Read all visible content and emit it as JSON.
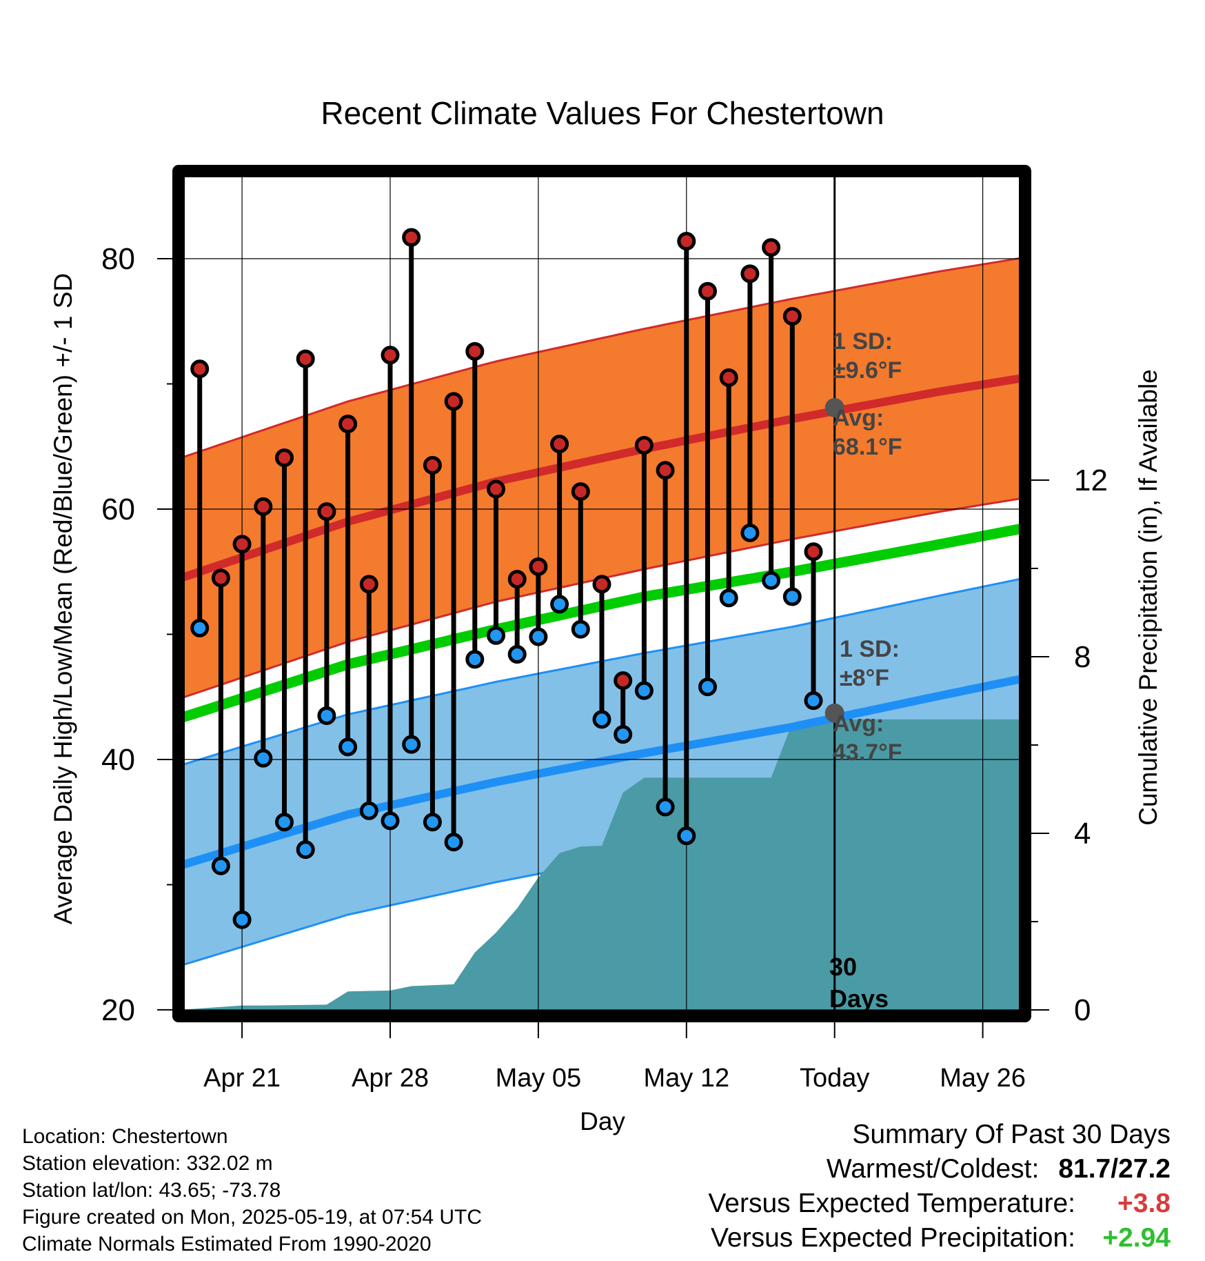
{
  "title": "Recent Climate Values For Chestertown",
  "colors": {
    "high_band": "#f47a2e",
    "high_line": "#d12a2a",
    "high_marker": "#c62828",
    "low_band": "#82c0e8",
    "low_line": "#1e8ff5",
    "low_marker": "#2196f3",
    "mean_line": "#00cc00",
    "precip": "#4a9ba5",
    "avg_marker": "#555555"
  },
  "chart_data": {
    "type": "line",
    "xlabel": "Day",
    "ylabel": "Average Daily High/Low/Mean (Red/Blue/Green) +/- 1 SD",
    "y2label": "Cumulative Precipitation (in), If Available",
    "xlim": [
      "2025-04-18",
      "2025-05-28"
    ],
    "ylim": [
      19.5,
      87
    ],
    "y2lim": [
      -0.14,
      19
    ],
    "x_ticks": [
      {
        "date": "2025-04-21",
        "label": "Apr 21"
      },
      {
        "date": "2025-04-28",
        "label": "Apr 28"
      },
      {
        "date": "2025-05-05",
        "label": "May 05"
      },
      {
        "date": "2025-05-12",
        "label": "May 12"
      },
      {
        "date": "2025-05-19",
        "label": "Today"
      },
      {
        "date": "2025-05-26",
        "label": "May 26"
      }
    ],
    "y_ticks": [
      20,
      40,
      60,
      80
    ],
    "y_minor_ticks": [
      30,
      50,
      70
    ],
    "y2_ticks": [
      0,
      4,
      8,
      12
    ],
    "y2_minor_ticks": [
      2,
      6,
      10
    ],
    "grid": true,
    "today": "2025-05-19",
    "period_label": "30\nDays",
    "normals": {
      "dates": [
        "2025-04-19",
        "2025-04-26",
        "2025-05-03",
        "2025-05-10",
        "2025-05-17",
        "2025-05-24",
        "2025-05-28"
      ],
      "high_mean": [
        55.0,
        59.0,
        62.2,
        64.8,
        67.2,
        69.4,
        70.5
      ],
      "high_sd": [
        9.6,
        9.6,
        9.6,
        9.6,
        9.6,
        9.6,
        9.6
      ],
      "low_mean": [
        32.0,
        35.6,
        38.2,
        40.5,
        42.6,
        45.1,
        46.5
      ],
      "low_sd": [
        8.0,
        8.0,
        8.0,
        8.0,
        8.0,
        8.0,
        8.0
      ],
      "mean": [
        43.8,
        47.6,
        50.4,
        53.0,
        55.0,
        57.2,
        58.5
      ]
    },
    "high_annotation": {
      "sd_label": "1 SD:",
      "sd_value": "±9.6°F",
      "avg_label": "Avg:",
      "avg_value": "68.1°F",
      "avg": 68.1
    },
    "low_annotation": {
      "sd_label": "1 SD:",
      "sd_value": "±8°F",
      "avg_label": "Avg:",
      "avg_value": "43.7°F",
      "avg": 43.7
    },
    "daily": [
      {
        "date": "2025-04-19",
        "high": 71.2,
        "low": 50.5
      },
      {
        "date": "2025-04-20",
        "high": 54.5,
        "low": 31.5
      },
      {
        "date": "2025-04-21",
        "high": 57.2,
        "low": 27.2
      },
      {
        "date": "2025-04-22",
        "high": 60.2,
        "low": 40.1
      },
      {
        "date": "2025-04-23",
        "high": 64.1,
        "low": 35.0
      },
      {
        "date": "2025-04-24",
        "high": 72.0,
        "low": 32.8
      },
      {
        "date": "2025-04-25",
        "high": 59.8,
        "low": 43.5
      },
      {
        "date": "2025-04-26",
        "high": 66.8,
        "low": 41.0
      },
      {
        "date": "2025-04-27",
        "high": 54.0,
        "low": 35.9
      },
      {
        "date": "2025-04-28",
        "high": 72.3,
        "low": 35.1
      },
      {
        "date": "2025-04-29",
        "high": 81.7,
        "low": 41.2
      },
      {
        "date": "2025-04-30",
        "high": 63.5,
        "low": 35.0
      },
      {
        "date": "2025-05-01",
        "high": 68.6,
        "low": 33.4
      },
      {
        "date": "2025-05-02",
        "high": 72.6,
        "low": 48.0
      },
      {
        "date": "2025-05-03",
        "high": 61.6,
        "low": 49.9
      },
      {
        "date": "2025-05-04",
        "high": 54.4,
        "low": 48.4
      },
      {
        "date": "2025-05-05",
        "high": 55.4,
        "low": 49.8
      },
      {
        "date": "2025-05-06",
        "high": 65.2,
        "low": 52.4
      },
      {
        "date": "2025-05-07",
        "high": 61.4,
        "low": 50.4
      },
      {
        "date": "2025-05-08",
        "high": 54.0,
        "low": 43.2
      },
      {
        "date": "2025-05-09",
        "high": 46.3,
        "low": 42.0
      },
      {
        "date": "2025-05-10",
        "high": 65.1,
        "low": 45.5
      },
      {
        "date": "2025-05-11",
        "high": 63.1,
        "low": 36.2
      },
      {
        "date": "2025-05-12",
        "high": 81.4,
        "low": 33.9
      },
      {
        "date": "2025-05-13",
        "high": 77.4,
        "low": 45.8
      },
      {
        "date": "2025-05-14",
        "high": 70.5,
        "low": 52.9
      },
      {
        "date": "2025-05-15",
        "high": 78.8,
        "low": 58.1
      },
      {
        "date": "2025-05-16",
        "high": 80.9,
        "low": 54.3
      },
      {
        "date": "2025-05-17",
        "high": 75.4,
        "low": 53.0
      },
      {
        "date": "2025-05-18",
        "high": 56.6,
        "low": 44.7
      }
    ],
    "precip_cumulative": [
      {
        "date": "2025-04-18",
        "value": 0.0
      },
      {
        "date": "2025-04-21",
        "value": 0.1
      },
      {
        "date": "2025-04-22",
        "value": 0.1
      },
      {
        "date": "2025-04-25",
        "value": 0.12
      },
      {
        "date": "2025-04-26",
        "value": 0.42
      },
      {
        "date": "2025-04-27",
        "value": 0.43
      },
      {
        "date": "2025-04-28",
        "value": 0.44
      },
      {
        "date": "2025-04-29",
        "value": 0.54
      },
      {
        "date": "2025-05-01",
        "value": 0.58
      },
      {
        "date": "2025-05-02",
        "value": 1.3
      },
      {
        "date": "2025-05-03",
        "value": 1.75
      },
      {
        "date": "2025-05-04",
        "value": 2.3
      },
      {
        "date": "2025-05-05",
        "value": 3.0
      },
      {
        "date": "2025-05-06",
        "value": 3.55
      },
      {
        "date": "2025-05-07",
        "value": 3.7
      },
      {
        "date": "2025-05-08",
        "value": 3.72
      },
      {
        "date": "2025-05-09",
        "value": 4.92
      },
      {
        "date": "2025-05-10",
        "value": 5.26
      },
      {
        "date": "2025-05-11",
        "value": 5.26
      },
      {
        "date": "2025-05-15",
        "value": 5.26
      },
      {
        "date": "2025-05-16",
        "value": 5.26
      },
      {
        "date": "2025-05-17",
        "value": 6.5
      },
      {
        "date": "2025-05-18",
        "value": 6.58
      },
      {
        "date": "2025-05-28",
        "value": 6.58
      }
    ]
  },
  "footer": {
    "location": "Location: Chestertown",
    "elevation": "Station elevation: 332.02 m",
    "latlon": "Station lat/lon: 43.65; -73.78",
    "created": "Figure created on Mon, 2025-05-19, at 07:54 UTC",
    "normals": "Climate Normals Estimated From 1990-2020"
  },
  "summary": {
    "title": "Summary Of Past 30 Days",
    "warm_cold_label": "Warmest/Coldest:",
    "warm_cold_value": "81.7/27.2",
    "temp_label": "Versus Expected Temperature:",
    "temp_value": "+3.8",
    "precip_label": "Versus Expected Precipitation:",
    "precip_value": "+2.94"
  }
}
